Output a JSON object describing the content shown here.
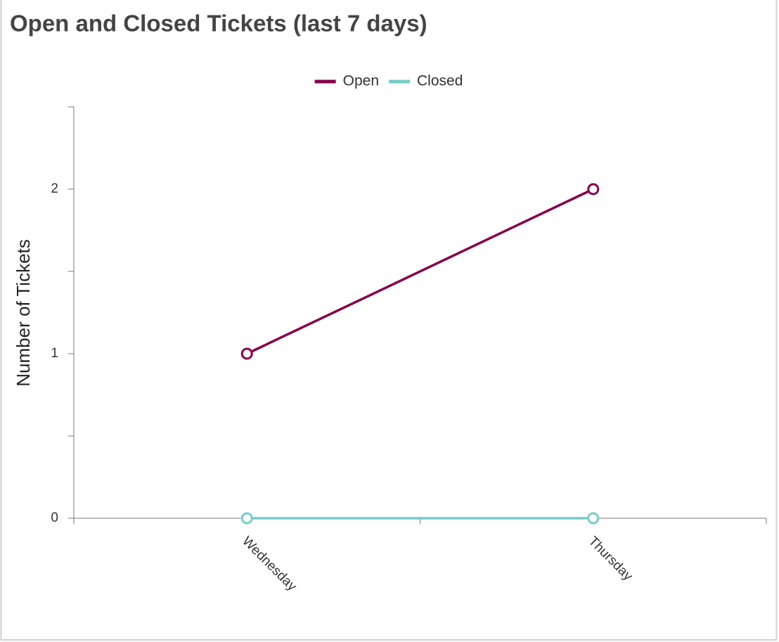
{
  "chart_data": {
    "type": "line",
    "title": "Open and Closed Tickets (last 7 days)",
    "y_label": "Number of Tickets",
    "categories": [
      "Wednesday",
      "Thursday"
    ],
    "series": [
      {
        "name": "Open",
        "color": "#85004b",
        "values": [
          1,
          2
        ]
      },
      {
        "name": "Closed",
        "color": "#76ccc8",
        "values": [
          0,
          0
        ]
      }
    ],
    "ylim": [
      0,
      2.5
    ],
    "yticks": [
      0,
      1,
      2
    ],
    "minor_yticks": [
      0.5,
      1.5,
      2.5
    ],
    "legend": "top"
  }
}
